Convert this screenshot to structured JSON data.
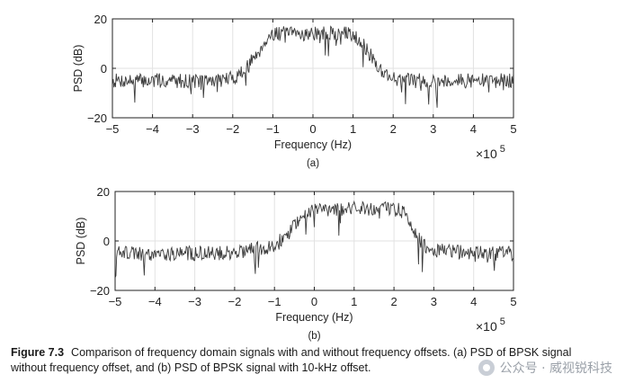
{
  "chart_data": [
    {
      "type": "line",
      "panel_label": "(a)",
      "xlabel": "Frequency (Hz)",
      "ylabel": "PSD (dB)",
      "x_multiplier": "×10",
      "x_exponent": "5",
      "xlim": [
        -5,
        5
      ],
      "ylim": [
        -20,
        20
      ],
      "xticks": [
        -5,
        -4,
        -3,
        -2,
        -1,
        0,
        1,
        2,
        3,
        4,
        5
      ],
      "yticks": [
        -20,
        0,
        20
      ],
      "grid": true,
      "line_color": "#3c3c3c",
      "trace": {
        "x": [
          -5,
          -4.5,
          -4,
          -3.5,
          -3,
          -2.5,
          -2,
          -1.8,
          -1.6,
          -1.5,
          -1.3,
          -1.2,
          -1,
          -0.5,
          0,
          0.5,
          1,
          1.2,
          1.3,
          1.5,
          1.6,
          1.8,
          2,
          2.5,
          3,
          3.5,
          4,
          4.5,
          5
        ],
        "y": [
          -5,
          -5,
          -5,
          -5,
          -5,
          -5,
          -4,
          -2,
          1,
          4,
          8,
          11,
          14,
          14,
          14,
          14,
          14,
          11,
          8,
          4,
          1,
          -2,
          -4,
          -5,
          -5,
          -5,
          -5,
          -5,
          -5
        ]
      },
      "noise": {
        "fluctuation_db": 3,
        "dip_depth_db": 10,
        "seed": 7
      }
    },
    {
      "type": "line",
      "panel_label": "(b)",
      "xlabel": "Frequency (Hz)",
      "ylabel": "PSD (dB)",
      "x_multiplier": "×10",
      "x_exponent": "5",
      "xlim": [
        -5,
        5
      ],
      "ylim": [
        -20,
        20
      ],
      "xticks": [
        -5,
        -4,
        -3,
        -2,
        -1,
        0,
        1,
        2,
        3,
        4,
        5
      ],
      "yticks": [
        -20,
        0,
        20
      ],
      "grid": true,
      "line_color": "#3c3c3c",
      "trace": {
        "x": [
          -5,
          -4.5,
          -4,
          -3.5,
          -3,
          -2.5,
          -2,
          -1.5,
          -1.2,
          -1,
          -0.8,
          -0.6,
          -0.5,
          -0.3,
          -0.2,
          0,
          0.5,
          1,
          1.5,
          2,
          2.2,
          2.3,
          2.5,
          2.6,
          2.8,
          3,
          3.5,
          4,
          4.5,
          5
        ],
        "y": [
          -5,
          -5,
          -5,
          -5,
          -5,
          -5,
          -4.5,
          -3.5,
          -2.5,
          -1.5,
          1,
          4,
          7,
          10,
          12,
          13,
          13,
          13,
          13,
          13,
          12,
          10,
          4,
          1,
          -2,
          -3.5,
          -4.5,
          -5,
          -5,
          -5
        ]
      },
      "noise": {
        "fluctuation_db": 3,
        "dip_depth_db": 10,
        "seed": 19
      }
    }
  ],
  "caption": {
    "label": "Figure 7.3",
    "text": "Comparison of frequency domain signals with and without frequency offsets. (a) PSD of BPSK signal without frequency offset, and (b) PSD of BPSK signal with 10-kHz offset."
  },
  "watermark": {
    "text": "公众号 · 威视锐科技",
    "icon": "wechat-icon"
  }
}
